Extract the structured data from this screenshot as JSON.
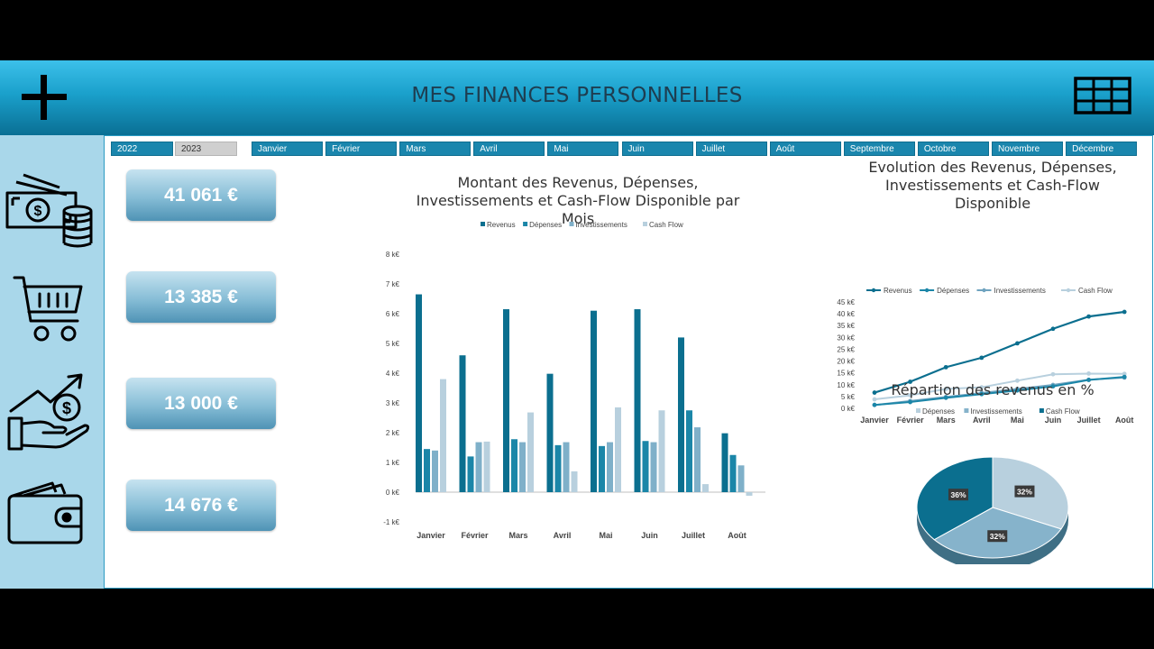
{
  "header": {
    "title": "MES FINANCES PERSONNELLES"
  },
  "years": [
    {
      "label": "2022",
      "active": true
    },
    {
      "label": "2023",
      "active": false
    }
  ],
  "months": [
    "Janvier",
    "Février",
    "Mars",
    "Avril",
    "Mai",
    "Juin",
    "Juillet",
    "Août",
    "Septembre",
    "Octobre",
    "Novembre",
    "Décembre"
  ],
  "kpis": [
    "41 061 €",
    "13 385 €",
    "13 000 €",
    "14 676 €"
  ],
  "sidebar_icons": [
    "money-icon",
    "cart-icon",
    "investment-icon",
    "wallet-icon"
  ],
  "colors": {
    "revenus": "#0b6f8f",
    "depenses": "#1b86a8",
    "investissements": "#7fb0c9",
    "cashflow": "#b8d0de"
  },
  "chart_data": [
    {
      "type": "bar",
      "title": "Montant des Revenus, Dépenses, Investissements et Cash-Flow Disponible par Mois",
      "categories": [
        "Janvier",
        "Février",
        "Mars",
        "Avril",
        "Mai",
        "Juin",
        "Juillet",
        "Août"
      ],
      "series": [
        {
          "name": "Revenus",
          "values": [
            6.65,
            4.6,
            6.15,
            3.98,
            6.1,
            6.15,
            5.2,
            1.98
          ]
        },
        {
          "name": "Dépenses",
          "values": [
            1.45,
            1.2,
            1.78,
            1.58,
            1.55,
            1.72,
            2.75,
            1.25
          ]
        },
        {
          "name": "Investissements",
          "values": [
            1.4,
            1.68,
            1.68,
            1.68,
            1.68,
            1.68,
            2.18,
            0.9
          ]
        },
        {
          "name": "Cash Flow",
          "values": [
            3.8,
            1.7,
            2.68,
            0.7,
            2.85,
            2.75,
            0.27,
            -0.12
          ]
        }
      ],
      "y_ticks": [
        "-1 k€",
        "0 k€",
        "1 k€",
        "2 k€",
        "3 k€",
        "4 k€",
        "5 k€",
        "6 k€",
        "7 k€",
        "8 k€"
      ],
      "ylim": [
        -1,
        8
      ],
      "legend": "top"
    },
    {
      "type": "line",
      "title": "Evolution des Revenus, Dépenses, Investissements et Cash-Flow Disponible",
      "categories": [
        "Janvier",
        "Février",
        "Mars",
        "Avril",
        "Mai",
        "Juin",
        "Juillet",
        "Août"
      ],
      "series": [
        {
          "name": "Revenus",
          "values": [
            6.65,
            11.25,
            17.4,
            21.4,
            27.5,
            33.65,
            38.85,
            40.8
          ]
        },
        {
          "name": "Dépenses",
          "values": [
            1.45,
            2.65,
            4.45,
            6.0,
            7.55,
            9.3,
            12.0,
            13.3
          ]
        },
        {
          "name": "Investissements",
          "values": [
            1.4,
            3.1,
            4.8,
            6.5,
            8.2,
            9.9,
            12.1,
            13.0
          ]
        },
        {
          "name": "Cash Flow",
          "values": [
            3.8,
            5.5,
            8.2,
            8.9,
            11.7,
            14.4,
            14.7,
            14.6
          ]
        }
      ],
      "y_ticks": [
        "0 k€",
        "5 k€",
        "10 k€",
        "15 k€",
        "20 k€",
        "25 k€",
        "30 k€",
        "35 k€",
        "40 k€",
        "45 k€"
      ],
      "ylim": [
        0,
        45
      ],
      "legend": "top"
    },
    {
      "type": "pie",
      "title": "Répartion des revenus en %",
      "labels": [
        "Dépenses",
        "Investissements",
        "Cash Flow"
      ],
      "values": [
        32,
        32,
        36
      ],
      "data_labels": [
        "32%",
        "32%",
        "36%"
      ],
      "legend": "top"
    }
  ]
}
